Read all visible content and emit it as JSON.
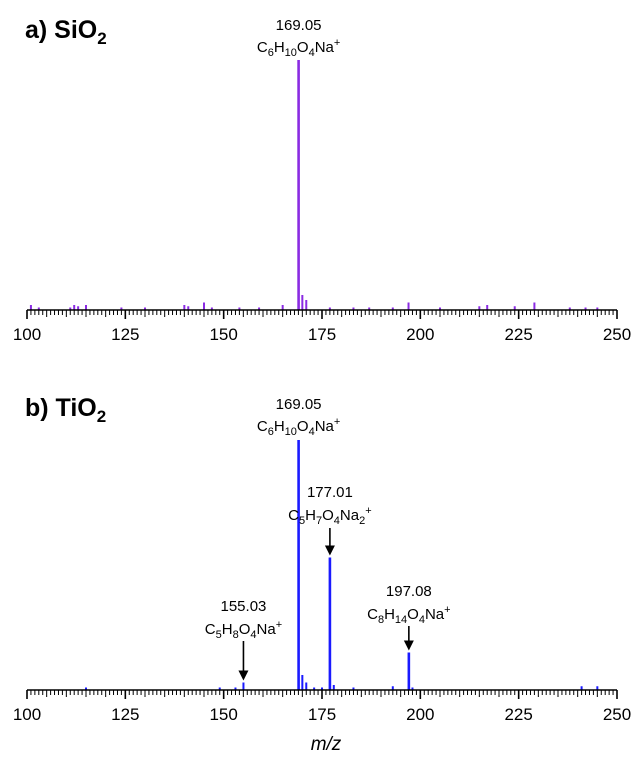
{
  "xlabel": "m/z",
  "chart_data": [
    {
      "type": "bar",
      "panel_label": "a) SiO",
      "panel_subscript": "2",
      "color": "#8a2be2",
      "xlim": [
        100,
        250
      ],
      "x_ticks": [
        100,
        125,
        150,
        175,
        200,
        225,
        250
      ],
      "xlabel": "",
      "peaks": [
        {
          "x": 101.0,
          "y": 2
        },
        {
          "x": 103.0,
          "y": 1
        },
        {
          "x": 111.0,
          "y": 1
        },
        {
          "x": 112.0,
          "y": 2
        },
        {
          "x": 113.0,
          "y": 1.5
        },
        {
          "x": 115.0,
          "y": 2
        },
        {
          "x": 124.0,
          "y": 1
        },
        {
          "x": 130.0,
          "y": 1
        },
        {
          "x": 140.0,
          "y": 2
        },
        {
          "x": 141.0,
          "y": 1.5
        },
        {
          "x": 145.0,
          "y": 3
        },
        {
          "x": 147.0,
          "y": 1
        },
        {
          "x": 154.0,
          "y": 1
        },
        {
          "x": 159.0,
          "y": 1
        },
        {
          "x": 165.0,
          "y": 2
        },
        {
          "x": 169.05,
          "y": 100
        },
        {
          "x": 170.0,
          "y": 6
        },
        {
          "x": 171.0,
          "y": 4
        },
        {
          "x": 177.0,
          "y": 1
        },
        {
          "x": 183.0,
          "y": 1
        },
        {
          "x": 187.0,
          "y": 1
        },
        {
          "x": 193.0,
          "y": 1
        },
        {
          "x": 197.0,
          "y": 3
        },
        {
          "x": 205.0,
          "y": 1
        },
        {
          "x": 215.0,
          "y": 1.5
        },
        {
          "x": 217.0,
          "y": 2
        },
        {
          "x": 224.0,
          "y": 1.5
        },
        {
          "x": 229.0,
          "y": 3
        },
        {
          "x": 238.0,
          "y": 1
        },
        {
          "x": 242.0,
          "y": 1
        },
        {
          "x": 245.0,
          "y": 1
        }
      ],
      "annotations": [
        {
          "x": 169.05,
          "mz_label": "169.05",
          "formula": [
            [
              "C",
              ""
            ],
            [
              "6",
              "sub"
            ],
            [
              "H",
              ""
            ],
            [
              "10",
              "sub"
            ],
            [
              "O",
              ""
            ],
            [
              "4",
              "sub"
            ],
            [
              "Na",
              ""
            ],
            [
              "+",
              "sup"
            ]
          ],
          "arrow": false
        }
      ]
    },
    {
      "type": "bar",
      "panel_label": "b) TiO",
      "panel_subscript": "2",
      "color": "#1a1aff",
      "xlim": [
        100,
        250
      ],
      "x_ticks": [
        100,
        125,
        150,
        175,
        200,
        225,
        250
      ],
      "xlabel": "m/z",
      "peaks": [
        {
          "x": 115.0,
          "y": 1
        },
        {
          "x": 149.0,
          "y": 1
        },
        {
          "x": 153.0,
          "y": 1
        },
        {
          "x": 155.03,
          "y": 3
        },
        {
          "x": 169.05,
          "y": 100
        },
        {
          "x": 170.0,
          "y": 6
        },
        {
          "x": 171.0,
          "y": 3
        },
        {
          "x": 173.0,
          "y": 1
        },
        {
          "x": 175.0,
          "y": 1
        },
        {
          "x": 177.01,
          "y": 53
        },
        {
          "x": 178.0,
          "y": 2
        },
        {
          "x": 183.0,
          "y": 1
        },
        {
          "x": 193.0,
          "y": 1.5
        },
        {
          "x": 197.08,
          "y": 15
        },
        {
          "x": 198.0,
          "y": 1
        },
        {
          "x": 241.0,
          "y": 1.5
        },
        {
          "x": 245.0,
          "y": 1.5
        }
      ],
      "annotations": [
        {
          "x": 169.05,
          "mz_label": "169.05",
          "formula": [
            [
              "C",
              ""
            ],
            [
              "6",
              "sub"
            ],
            [
              "H",
              ""
            ],
            [
              "10",
              "sub"
            ],
            [
              "O",
              ""
            ],
            [
              "4",
              "sub"
            ],
            [
              "Na",
              ""
            ],
            [
              "+",
              "sup"
            ]
          ],
          "arrow": false
        },
        {
          "x": 177.01,
          "mz_label": "177.01",
          "formula": [
            [
              "C",
              ""
            ],
            [
              "5",
              "sub"
            ],
            [
              "H",
              ""
            ],
            [
              "7",
              "sub"
            ],
            [
              "O",
              ""
            ],
            [
              "4",
              "sub"
            ],
            [
              "Na",
              ""
            ],
            [
              "2",
              "sub"
            ],
            [
              "+",
              "sup"
            ]
          ],
          "arrow": true
        },
        {
          "x": 197.08,
          "mz_label": "197.08",
          "formula": [
            [
              "C",
              ""
            ],
            [
              "8",
              "sub"
            ],
            [
              "H",
              ""
            ],
            [
              "14",
              "sub"
            ],
            [
              "O",
              ""
            ],
            [
              "4",
              "sub"
            ],
            [
              "Na",
              ""
            ],
            [
              "+",
              "sup"
            ]
          ],
          "arrow": true
        },
        {
          "x": 155.03,
          "mz_label": "155.03",
          "formula": [
            [
              "C",
              ""
            ],
            [
              "5",
              "sub"
            ],
            [
              "H",
              ""
            ],
            [
              "8",
              "sub"
            ],
            [
              "O",
              ""
            ],
            [
              "4",
              "sub"
            ],
            [
              "Na",
              ""
            ],
            [
              "+",
              "sup"
            ]
          ],
          "arrow": true
        }
      ]
    }
  ]
}
